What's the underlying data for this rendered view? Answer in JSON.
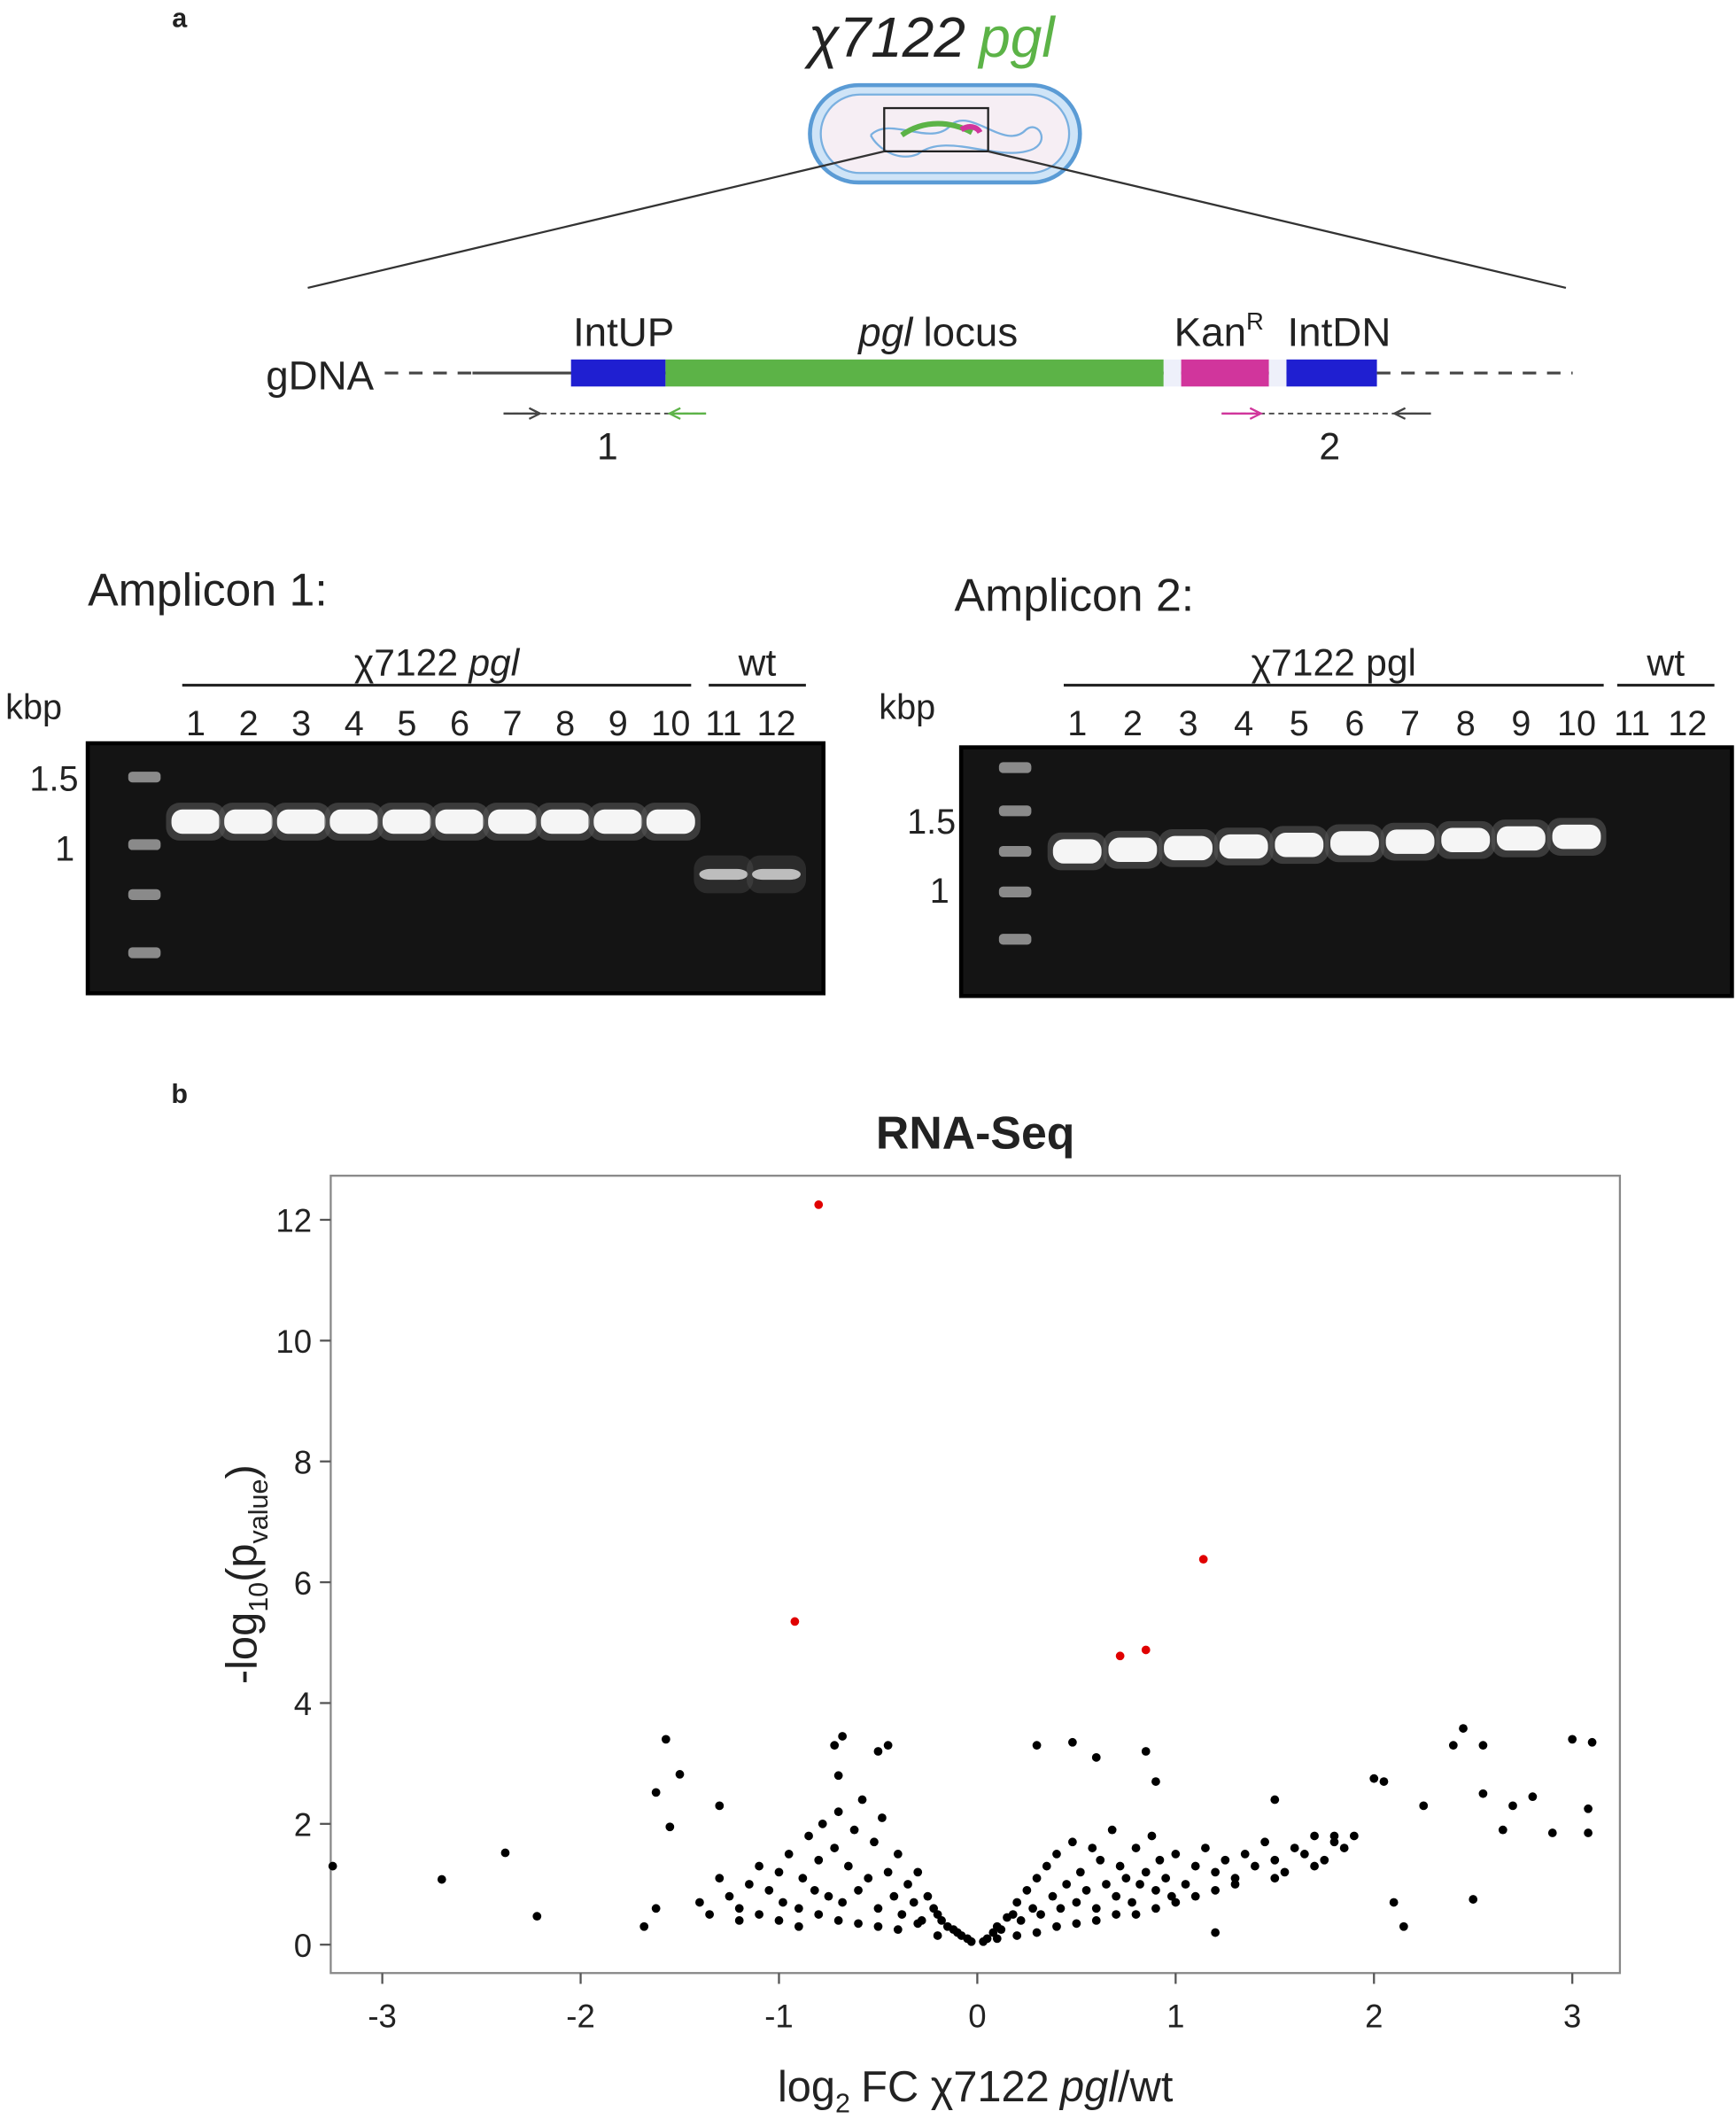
{
  "panel_a": {
    "label": "a",
    "strain": "χ7122",
    "gene": "pgl",
    "locus": {
      "gdna": "gDNA",
      "int_up": "IntUP",
      "locus_gene": "pgl",
      "locus_word": "locus",
      "kan": "Kan",
      "kan_sup": "R",
      "int_dn": "IntDN",
      "primer_1": "1",
      "primer_2": "2"
    },
    "gels": [
      {
        "title": "Amplicon 1:",
        "group_strain": "χ7122",
        "group_gene": "pgl",
        "group_gene_italic": true,
        "wt": "wt",
        "unit": "kbp",
        "lanes": [
          "1",
          "2",
          "3",
          "4",
          "5",
          "6",
          "7",
          "8",
          "9",
          "10",
          "11",
          "12"
        ],
        "ladder": [
          "1.5",
          "1"
        ]
      },
      {
        "title": "Amplicon 2:",
        "group_strain": "χ7122",
        "group_gene": "pgl",
        "group_gene_italic": false,
        "wt": "wt",
        "unit": "kbp",
        "lanes": [
          "1",
          "2",
          "3",
          "4",
          "5",
          "6",
          "7",
          "8",
          "9",
          "10",
          "11",
          "12"
        ],
        "ladder": [
          "1.5",
          "1"
        ]
      }
    ]
  },
  "chart_data": {
    "type": "scatter",
    "label": "b",
    "title": "RNA-Seq",
    "x_label": {
      "prefix": "log",
      "sub": "2",
      "mid": "FC χ7122",
      "italic": "pgl",
      "suffix": "/wt"
    },
    "y_label": {
      "prefix": "-log",
      "sub": "10",
      "open": "(p",
      "sub2": "value",
      "close": ")"
    },
    "xlim": [
      -3.26,
      3.24
    ],
    "ylim": [
      -0.47,
      12.73
    ],
    "xticks": [
      -3,
      -2,
      -1,
      0,
      1,
      2,
      3
    ],
    "yticks": [
      0,
      2,
      4,
      6,
      8,
      10,
      12
    ],
    "series": [
      {
        "color": "#e00000",
        "x": [
          -0.8,
          -0.92,
          1.14,
          0.72,
          0.85
        ],
        "values": [
          12.25,
          5.35,
          6.38,
          4.78,
          4.88
        ]
      },
      {
        "color": "#000000",
        "x": [
          -3.25,
          -2.7,
          -2.38,
          -2.22,
          -1.57,
          -1.5,
          -1.62,
          -1.55,
          -1.62,
          -1.68,
          -1.3,
          -0.68,
          -0.72,
          -0.5,
          -0.45,
          -0.7,
          0.3,
          0.48,
          0.6,
          0.85,
          0.9,
          1.5,
          2.0,
          2.05,
          2.1,
          2.15,
          2.25,
          2.4,
          2.45,
          2.55,
          2.5,
          2.7,
          2.8,
          3.0,
          3.1,
          3.08,
          3.08,
          2.9,
          2.65,
          2.55,
          1.8,
          1.2,
          -1.25,
          -1.2,
          -1.15,
          -1.1,
          -1.05,
          -1.0,
          -0.98,
          -0.95,
          -0.9,
          -0.88,
          -0.85,
          -0.82,
          -0.8,
          -0.78,
          -0.75,
          -0.72,
          -0.7,
          -0.68,
          -0.65,
          -0.62,
          -0.6,
          -0.58,
          -0.55,
          -0.52,
          -0.5,
          -0.48,
          -0.45,
          -0.42,
          -0.4,
          -0.38,
          -0.35,
          -0.32,
          -0.3,
          -0.28,
          -0.25,
          -0.22,
          -0.2,
          -0.18,
          -0.15,
          -0.12,
          -0.1,
          -0.08,
          -0.05,
          -0.03,
          -1.4,
          -1.35,
          -1.3,
          -1.2,
          -1.1,
          -1.0,
          -0.9,
          -0.8,
          -0.7,
          -0.6,
          -0.5,
          -0.4,
          -0.3,
          -0.2,
          0.03,
          0.05,
          0.08,
          0.1,
          0.12,
          0.15,
          0.18,
          0.2,
          0.22,
          0.25,
          0.28,
          0.3,
          0.32,
          0.35,
          0.38,
          0.4,
          0.42,
          0.45,
          0.48,
          0.5,
          0.52,
          0.55,
          0.58,
          0.6,
          0.62,
          0.65,
          0.68,
          0.7,
          0.72,
          0.75,
          0.78,
          0.8,
          0.82,
          0.85,
          0.88,
          0.9,
          0.92,
          0.95,
          0.98,
          1.0,
          1.05,
          1.1,
          1.15,
          1.2,
          1.25,
          1.3,
          1.35,
          1.4,
          1.45,
          1.5,
          1.55,
          1.6,
          1.65,
          1.7,
          1.75,
          1.8,
          1.85,
          1.9,
          0.1,
          0.2,
          0.3,
          0.4,
          0.5,
          0.6,
          0.7,
          0.8,
          0.9,
          1.0,
          1.1,
          1.2,
          1.3,
          1.5,
          1.7
        ],
        "values": [
          1.3,
          1.08,
          1.52,
          0.47,
          3.4,
          2.82,
          2.52,
          1.95,
          0.6,
          0.3,
          2.3,
          3.45,
          3.3,
          3.2,
          3.3,
          2.8,
          3.3,
          3.35,
          3.1,
          3.2,
          2.7,
          2.4,
          2.75,
          2.7,
          0.7,
          0.3,
          2.3,
          3.3,
          3.58,
          3.3,
          0.75,
          2.3,
          2.45,
          3.4,
          3.35,
          2.25,
          1.85,
          1.85,
          1.9,
          2.5,
          1.8,
          0.2,
          0.8,
          0.6,
          1.0,
          0.5,
          0.9,
          1.2,
          0.7,
          1.5,
          0.6,
          1.1,
          1.8,
          0.9,
          1.4,
          2.0,
          0.8,
          1.6,
          2.2,
          0.7,
          1.3,
          1.9,
          0.9,
          2.4,
          1.1,
          1.7,
          0.6,
          2.1,
          1.2,
          0.8,
          1.5,
          0.5,
          1.0,
          0.7,
          1.2,
          0.4,
          0.8,
          0.6,
          0.5,
          0.4,
          0.3,
          0.25,
          0.2,
          0.15,
          0.1,
          0.05,
          0.7,
          0.5,
          1.1,
          0.4,
          1.3,
          0.4,
          0.3,
          0.5,
          0.4,
          0.35,
          0.3,
          0.25,
          0.35,
          0.15,
          0.05,
          0.1,
          0.2,
          0.3,
          0.25,
          0.45,
          0.5,
          0.7,
          0.4,
          0.9,
          0.6,
          1.1,
          0.5,
          1.3,
          0.8,
          1.5,
          0.6,
          1.0,
          1.7,
          0.7,
          1.2,
          0.9,
          1.6,
          0.6,
          1.4,
          1.0,
          1.9,
          0.8,
          1.3,
          1.1,
          0.7,
          1.6,
          1.0,
          1.2,
          1.8,
          0.9,
          1.4,
          1.1,
          0.8,
          1.5,
          1.0,
          1.3,
          1.6,
          1.2,
          1.4,
          1.1,
          1.5,
          1.3,
          1.7,
          1.4,
          1.2,
          1.6,
          1.5,
          1.8,
          1.4,
          1.7,
          1.6,
          1.8,
          0.1,
          0.15,
          0.2,
          0.3,
          0.35,
          0.4,
          0.5,
          0.5,
          0.6,
          0.7,
          0.8,
          0.9,
          1.0,
          1.1,
          1.3
        ]
      }
    ]
  }
}
